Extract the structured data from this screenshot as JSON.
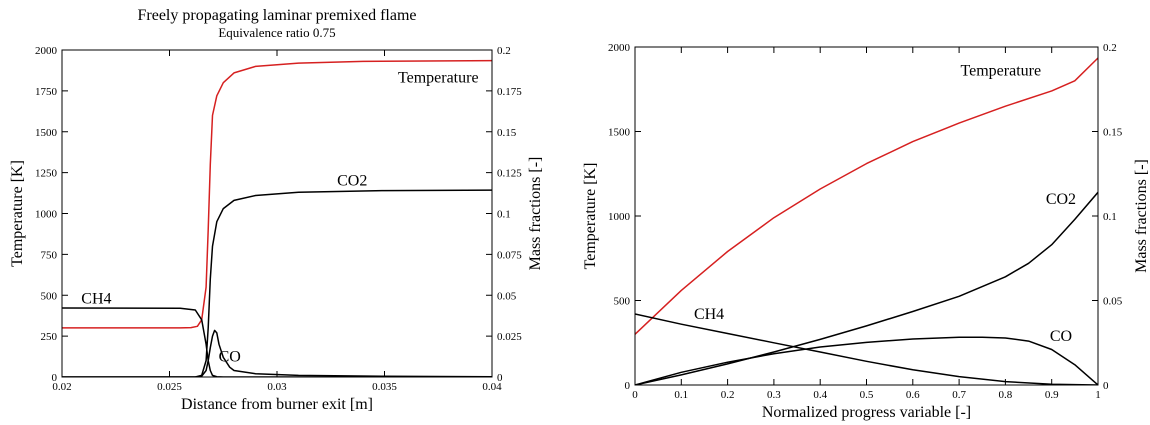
{
  "chart_data": [
    {
      "type": "line",
      "title": "Freely propagating laminar premixed flame",
      "subtitle": "Equivalence ratio 0.75",
      "xlabel": "Distance from burner exit [m]",
      "ylabel": "Temperature [K]",
      "y2label": "Mass fractions [-]",
      "xlim": [
        0.02,
        0.04
      ],
      "ylim": [
        0,
        2000
      ],
      "y2lim": [
        0,
        0.2
      ],
      "x_ticks": [
        "0.02",
        "0.025",
        "0.03",
        "0.035",
        "0.04"
      ],
      "y_ticks": [
        "0",
        "250",
        "500",
        "750",
        "1000",
        "1250",
        "1500",
        "1750",
        "2000"
      ],
      "y2_ticks": [
        "0",
        "0.025",
        "0.05",
        "0.075",
        "0.1",
        "0.125",
        "0.15",
        "0.175",
        "0.2"
      ],
      "grid": false,
      "series": [
        {
          "name": "Temperature",
          "axis": "left",
          "color": "#d62020",
          "x": [
            0.02,
            0.0255,
            0.026,
            0.0263,
            0.0265,
            0.0267,
            0.0268,
            0.0269,
            0.027,
            0.0272,
            0.0275,
            0.028,
            0.029,
            0.031,
            0.034,
            0.04
          ],
          "y": [
            300,
            300,
            302,
            310,
            350,
            550,
            900,
            1300,
            1600,
            1720,
            1800,
            1860,
            1900,
            1920,
            1930,
            1935
          ]
        },
        {
          "name": "CO2",
          "axis": "right",
          "color": "#000000",
          "x": [
            0.02,
            0.0262,
            0.0265,
            0.0267,
            0.0268,
            0.0269,
            0.027,
            0.0272,
            0.0275,
            0.028,
            0.029,
            0.031,
            0.035,
            0.04
          ],
          "y": [
            0,
            0,
            0.001,
            0.01,
            0.03,
            0.06,
            0.08,
            0.095,
            0.103,
            0.108,
            0.111,
            0.113,
            0.114,
            0.1143
          ]
        },
        {
          "name": "CH4",
          "axis": "right",
          "color": "#000000",
          "x": [
            0.02,
            0.0255,
            0.0262,
            0.0265,
            0.0267,
            0.0268,
            0.0269,
            0.027,
            0.0272,
            0.0275,
            0.04
          ],
          "y": [
            0.0422,
            0.0421,
            0.041,
            0.035,
            0.02,
            0.01,
            0.004,
            0.001,
            0.0002,
            0,
            0
          ]
        },
        {
          "name": "CO",
          "axis": "right",
          "color": "#000000",
          "x": [
            0.02,
            0.0262,
            0.0265,
            0.0267,
            0.0268,
            0.0269,
            0.027,
            0.0271,
            0.0272,
            0.0273,
            0.0275,
            0.0278,
            0.028,
            0.029,
            0.031,
            0.035,
            0.04
          ],
          "y": [
            0,
            0,
            0.0005,
            0.004,
            0.01,
            0.018,
            0.025,
            0.0285,
            0.027,
            0.02,
            0.012,
            0.006,
            0.004,
            0.002,
            0.001,
            0.0004,
            0.0002
          ]
        }
      ],
      "annotations": [
        {
          "text": "Temperature",
          "x": 0.0375,
          "y": 1800,
          "axis": "left"
        },
        {
          "text": "CO2",
          "x": 0.0335,
          "y": 0.117,
          "axis": "right"
        },
        {
          "text": "CH4",
          "x": 0.0216,
          "y": 0.045,
          "axis": "right"
        },
        {
          "text": "CO",
          "x": 0.0278,
          "y": 0.0095,
          "axis": "right"
        }
      ]
    },
    {
      "type": "line",
      "title": "",
      "xlabel": "Normalized progress variable [-]",
      "ylabel": "Temperature [K]",
      "y2label": "Mass fractions [-]",
      "xlim": [
        0,
        1
      ],
      "ylim": [
        0,
        2000
      ],
      "y2lim": [
        0,
        0.2
      ],
      "x_ticks": [
        "0",
        "0.1",
        "0.2",
        "0.3",
        "0.4",
        "0.5",
        "0.6",
        "0.7",
        "0.8",
        "0.9",
        "1"
      ],
      "y_ticks": [
        "0",
        "500",
        "1000",
        "1500",
        "2000"
      ],
      "y2_ticks": [
        "0",
        "0.05",
        "0.1",
        "0.15",
        "0.2"
      ],
      "grid": false,
      "series": [
        {
          "name": "Temperature",
          "axis": "left",
          "color": "#d62020",
          "x": [
            0,
            0.05,
            0.1,
            0.2,
            0.3,
            0.4,
            0.5,
            0.6,
            0.7,
            0.8,
            0.9,
            0.95,
            1
          ],
          "y": [
            300,
            430,
            560,
            790,
            990,
            1160,
            1310,
            1440,
            1550,
            1650,
            1740,
            1800,
            1935
          ]
        },
        {
          "name": "CO2",
          "axis": "right",
          "color": "#000000",
          "x": [
            0,
            0.1,
            0.2,
            0.3,
            0.4,
            0.5,
            0.6,
            0.7,
            0.8,
            0.85,
            0.9,
            0.95,
            1
          ],
          "y": [
            0,
            0.006,
            0.0125,
            0.0195,
            0.027,
            0.035,
            0.0435,
            0.0525,
            0.064,
            0.072,
            0.083,
            0.098,
            0.114
          ]
        },
        {
          "name": "CH4",
          "axis": "right",
          "color": "#000000",
          "x": [
            0,
            0.1,
            0.2,
            0.3,
            0.4,
            0.5,
            0.6,
            0.7,
            0.8,
            0.9,
            1
          ],
          "y": [
            0.042,
            0.036,
            0.0305,
            0.025,
            0.0195,
            0.014,
            0.009,
            0.005,
            0.002,
            0.0005,
            0
          ]
        },
        {
          "name": "CO",
          "axis": "right",
          "color": "#000000",
          "x": [
            0,
            0.1,
            0.2,
            0.3,
            0.4,
            0.5,
            0.6,
            0.7,
            0.75,
            0.8,
            0.85,
            0.9,
            0.95,
            1
          ],
          "y": [
            0,
            0.0075,
            0.0135,
            0.0185,
            0.0225,
            0.0252,
            0.0272,
            0.0282,
            0.0283,
            0.0278,
            0.026,
            0.021,
            0.012,
            0
          ]
        }
      ],
      "annotations": [
        {
          "text": "Temperature",
          "x": 0.79,
          "y": 1830,
          "axis": "left"
        },
        {
          "text": "CO2",
          "x": 0.92,
          "y": 0.107,
          "axis": "right"
        },
        {
          "text": "CH4",
          "x": 0.16,
          "y": 0.039,
          "axis": "right"
        },
        {
          "text": "CO",
          "x": 0.92,
          "y": 0.026,
          "axis": "right"
        }
      ]
    }
  ]
}
